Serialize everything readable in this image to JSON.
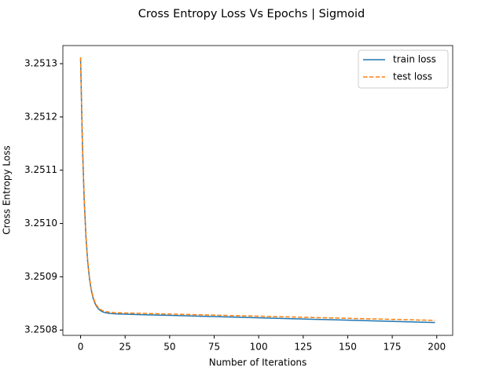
{
  "chart_data": {
    "type": "line",
    "title": "Cross Entropy Loss Vs Epochs | Sigmoid",
    "x_label": "Number of Iterations",
    "y_label": "Cross Entropy Loss",
    "x": [
      0,
      1,
      2,
      3,
      4,
      5,
      6,
      7,
      8,
      9,
      10,
      11,
      12,
      13,
      14,
      15,
      16,
      17,
      18,
      19,
      20,
      25,
      30,
      40,
      50,
      60,
      70,
      80,
      90,
      100,
      110,
      120,
      130,
      140,
      150,
      160,
      170,
      180,
      190,
      199
    ],
    "series": [
      {
        "name": "train loss",
        "color": "#1f77b4",
        "dash": false,
        "values": [
          3.251309,
          3.2511516,
          3.2510461,
          3.2509754,
          3.2509279,
          3.2508961,
          3.2508748,
          3.2508604,
          3.2508508,
          3.2508442,
          3.2508398,
          3.2508369,
          3.2508348,
          3.2508334,
          3.2508325,
          3.2508319,
          3.2508314,
          3.250831,
          3.2508307,
          3.2508305,
          3.2508303,
          3.2508298,
          3.2508293,
          3.2508284,
          3.2508275,
          3.2508266,
          3.2508257,
          3.2508248,
          3.2508239,
          3.250823,
          3.2508221,
          3.2508212,
          3.2508203,
          3.2508194,
          3.2508185,
          3.2508176,
          3.2508167,
          3.2508158,
          3.2508149,
          3.2508141
        ]
      },
      {
        "name": "test loss",
        "color": "#ff7f0e",
        "dash": true,
        "values": [
          3.251312,
          3.2511543,
          3.2510486,
          3.2509778,
          3.2509302,
          3.2508983,
          3.2508769,
          3.2508625,
          3.2508529,
          3.2508463,
          3.2508419,
          3.250839,
          3.2508369,
          3.2508356,
          3.2508347,
          3.250834,
          3.2508335,
          3.2508331,
          3.2508329,
          3.2508327,
          3.2508325,
          3.250832,
          3.2508316,
          3.2508308,
          3.25083,
          3.2508292,
          3.2508284,
          3.2508276,
          3.2508268,
          3.250826,
          3.2508252,
          3.2508244,
          3.2508236,
          3.2508228,
          3.250822,
          3.2508212,
          3.2508204,
          3.2508196,
          3.2508188,
          3.2508181
        ]
      }
    ],
    "xlim": [
      -9.95,
      208.95
    ],
    "xticks": [
      0,
      25,
      50,
      75,
      100,
      125,
      150,
      175,
      200
    ],
    "ylim": [
      3.25079,
      3.251334
    ],
    "yticks": [
      3.2508,
      3.2509,
      {
        "value": 3.251,
        "label": "3.2510"
      },
      3.2511,
      3.2512,
      3.2513
    ],
    "grid": false,
    "legend": "upper right"
  }
}
